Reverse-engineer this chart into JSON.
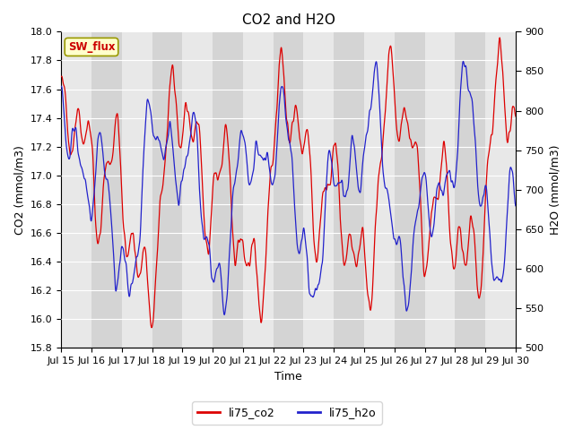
{
  "title": "CO2 and H2O",
  "xlabel": "Time",
  "ylabel_left": "CO2 (mmol/m3)",
  "ylabel_right": "H2O (mmol/m3)",
  "ylim_left": [
    15.8,
    18.0
  ],
  "ylim_right": [
    500,
    900
  ],
  "xtick_labels": [
    "Jul 15",
    "Jul 16",
    "Jul 17",
    "Jul 18",
    "Jul 19",
    "Jul 20",
    "Jul 21",
    "Jul 22",
    "Jul 23",
    "Jul 24",
    "Jul 25",
    "Jul 26",
    "Jul 27",
    "Jul 28",
    "Jul 29",
    "Jul 30"
  ],
  "color_co2": "#dd0000",
  "color_h2o": "#2222cc",
  "legend_co2": "li75_co2",
  "legend_h2o": "li75_h2o",
  "sw_flux_label": "SW_flux",
  "plot_bg_color": "#e8e8e8",
  "fig_bg_color": "#ffffff",
  "band_light_color": "#e8e8e8",
  "band_dark_color": "#d4d4d4",
  "title_fontsize": 11,
  "axis_label_fontsize": 9,
  "tick_fontsize": 8,
  "legend_fontsize": 9
}
